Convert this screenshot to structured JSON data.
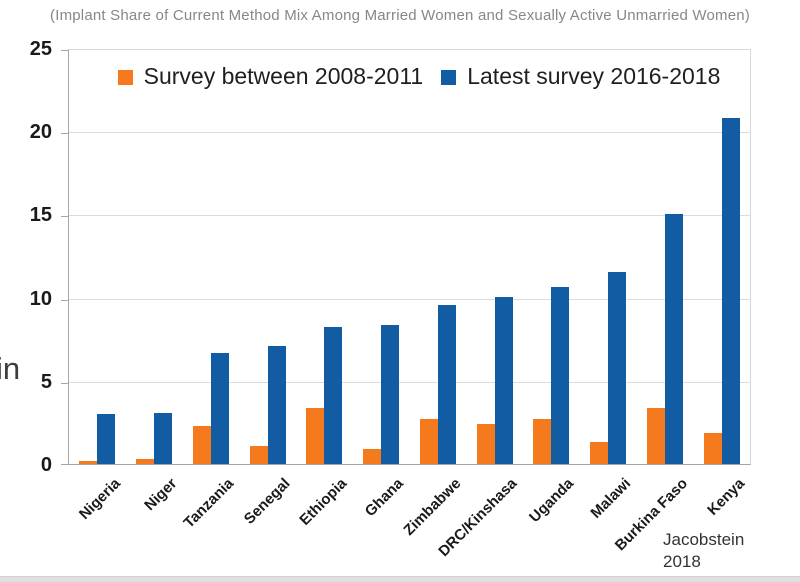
{
  "y_axis_fragment": "in",
  "source_note": {
    "line1": "Jacobstein",
    "line2": "2018"
  },
  "colors": {
    "orange": "#F5791D",
    "blue": "#125CA4",
    "title_gray": "#878787",
    "gridline": "#DCDCDC",
    "axis_line": "#A6A6A6"
  },
  "chart_data": {
    "type": "bar",
    "title": "(Implant Share of Current Method Mix Among Married Women and Sexually Active Unmarried Women)",
    "categories": [
      "Nigeria",
      "Niger",
      "Tanzania",
      "Senegal",
      "Ethiopia",
      "Ghana",
      "Zimbabwe",
      "DRC/Kinshasa",
      "Uganda",
      "Malawi",
      "Burkina Faso",
      "Kenya"
    ],
    "series": [
      {
        "name": "Survey between 2008-2011",
        "color": "#F5791D",
        "values": [
          0.2,
          0.3,
          2.3,
          1.1,
          3.4,
          0.9,
          2.7,
          2.4,
          2.7,
          1.3,
          3.4,
          1.9
        ]
      },
      {
        "name": "Latest survey 2016-2018",
        "color": "#125CA4",
        "values": [
          3.0,
          3.1,
          6.7,
          7.1,
          8.3,
          8.4,
          9.6,
          10.1,
          10.7,
          11.6,
          15.1,
          20.9
        ]
      }
    ],
    "xlabel": "",
    "ylabel": "",
    "ylim": [
      0,
      25
    ],
    "y_ticks": [
      0,
      5,
      10,
      15,
      20,
      25
    ],
    "grid": true,
    "legend_position": "top",
    "annotation": "Jacobstein 2018"
  }
}
